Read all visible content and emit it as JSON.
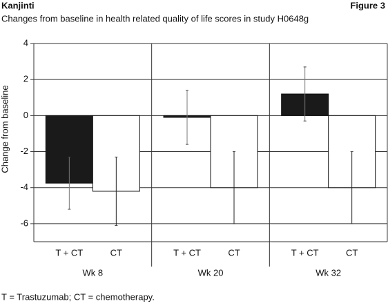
{
  "chart_data": {
    "type": "bar",
    "title": "Kanjinti",
    "figure_label": "Figure 3",
    "subtitle": "Changes from baseline in health related quality of life scores in study H0648g",
    "y_label": "Change from baseline",
    "footnote": "T = Trastuzumab; CT = chemotherapy.",
    "categories": [
      "Wk 8",
      "Wk 20",
      "Wk 32"
    ],
    "series": [
      {
        "name": "T + CT",
        "color": "#1a1a1a",
        "values": [
          -3.75,
          -0.1,
          1.2
        ],
        "errors": [
          1.45,
          1.5,
          1.5
        ]
      },
      {
        "name": "CT",
        "color": "#ffffff",
        "values": [
          -4.2,
          -4.0,
          -4.0
        ],
        "errors": [
          1.9,
          2.0,
          2.0
        ]
      }
    ],
    "ylim": [
      -7,
      4
    ],
    "yticks": [
      4,
      2,
      0,
      -2,
      -4,
      -6
    ],
    "grid": true
  }
}
